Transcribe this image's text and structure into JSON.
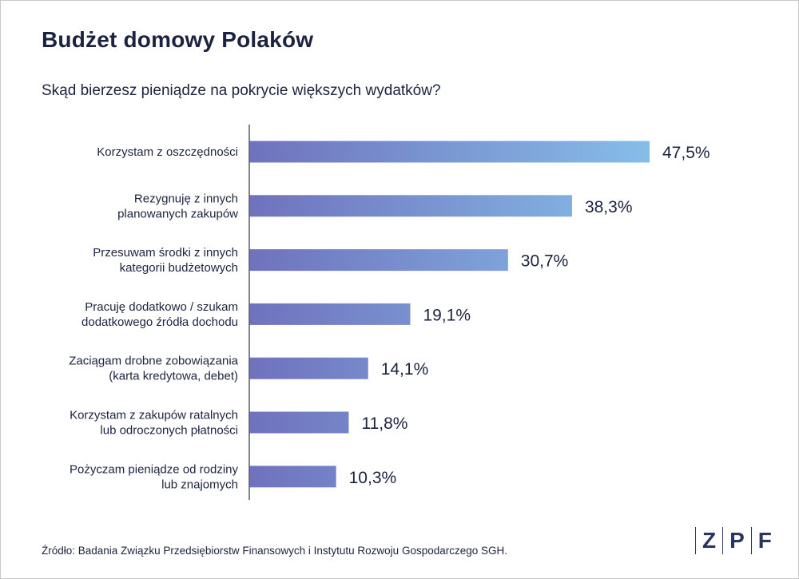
{
  "header": {
    "title": "Budżet domowy Polaków",
    "subtitle": "Skąd bierzesz pieniądze na pokrycie większych wydatków?"
  },
  "footer": {
    "source": "Źródło: Badania Związku Przedsiębiorstw Finansowych i Instytutu Rozwoju Gospodarczego SGH.",
    "logo": [
      "Z",
      "P",
      "F"
    ]
  },
  "colors": {
    "bar_start": "#6f72bd",
    "bar_end": "#86bde9",
    "text": "#1c2340",
    "axis": "#555a6e"
  },
  "chart_data": {
    "type": "bar",
    "orientation": "horizontal",
    "categories": [
      [
        "Korzystam z oszczędności"
      ],
      [
        "Rezygnuję z innych",
        "planowanych zakupów"
      ],
      [
        "Przesuwam środki z innych",
        "kategorii budżetowych"
      ],
      [
        "Pracuję dodatkowo / szukam",
        "dodatkowego źródła dochodu"
      ],
      [
        "Zaciągam drobne zobowiązania",
        "(karta kredytowa, debet)"
      ],
      [
        "Korzystam z zakupów ratalnych",
        "lub odroczonych płatności"
      ],
      [
        "Pożyczam pieniądze od rodziny",
        "lub znajomych"
      ]
    ],
    "values": [
      47.5,
      38.3,
      30.7,
      19.1,
      14.1,
      11.8,
      10.3
    ],
    "value_labels": [
      "47,5%",
      "38,3%",
      "30,7%",
      "19,1%",
      "14,1%",
      "11,8%",
      "10,3%"
    ],
    "unit": "%",
    "xlim": [
      0,
      47.5
    ],
    "grid": false,
    "legend": "none"
  }
}
